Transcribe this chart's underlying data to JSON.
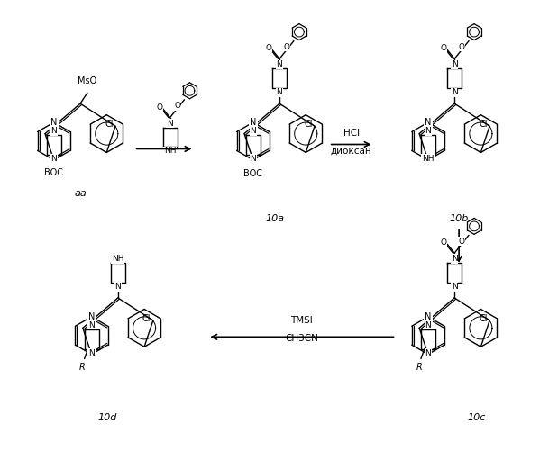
{
  "background_color": "#ffffff",
  "fig_width": 6.19,
  "fig_height": 5.0,
  "dpi": 100,
  "compounds": [
    "aa",
    "10a",
    "10b",
    "10c",
    "10d"
  ],
  "reagent1_line1": "HCl",
  "reagent1_line2": "диоксан",
  "reagent2_line1": "TMSI",
  "reagent2_line2": "CH3CN"
}
